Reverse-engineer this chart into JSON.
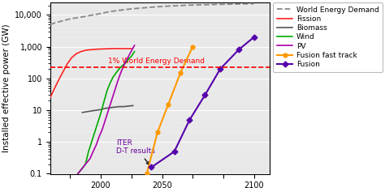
{
  "ylabel": "Installed effective power (GW)",
  "xlim": [
    1967,
    2110
  ],
  "ylim_log": [
    0.1,
    25000
  ],
  "background_color": "#e8e8e8",
  "one_percent_line_y": 220,
  "one_percent_label": "1% World Energy Demand",
  "iter_annotation": "ITER\nD-T results",
  "world_energy_demand": {
    "x": [
      1967,
      1970,
      1975,
      1980,
      1985,
      1990,
      1995,
      2000,
      2005,
      2010,
      2015,
      2020,
      2030,
      2040,
      2050,
      2060,
      2070,
      2080,
      2090,
      2100
    ],
    "y": [
      5000,
      5600,
      6500,
      7500,
      8200,
      9000,
      10000,
      11000,
      12500,
      13500,
      14500,
      15500,
      17000,
      18500,
      19500,
      20500,
      21000,
      21500,
      22000,
      22500
    ],
    "color": "#888888",
    "linestyle": "--",
    "label": "World Energy Demand"
  },
  "pv": {
    "x": [
      1985,
      1988,
      1990,
      1993,
      1995,
      1997,
      1999,
      2001,
      2003,
      2005,
      2007,
      2009,
      2011,
      2013,
      2015,
      2017,
      2019,
      2021,
      2022
    ],
    "y": [
      0.1,
      0.15,
      0.2,
      0.3,
      0.5,
      0.8,
      1.5,
      2.5,
      5.0,
      10.0,
      20.0,
      40.0,
      80.0,
      150.0,
      250.0,
      400.0,
      600.0,
      900.0,
      1100.0
    ],
    "color": "#aa00aa",
    "label": "PV"
  },
  "fission": {
    "x": [
      1960,
      1963,
      1966,
      1969,
      1972,
      1975,
      1978,
      1981,
      1984,
      1987,
      1990,
      1993,
      1996,
      1999,
      2002,
      2005,
      2008,
      2011,
      2015,
      2020
    ],
    "y": [
      8,
      12,
      20,
      40,
      80,
      150,
      280,
      450,
      600,
      700,
      770,
      800,
      820,
      840,
      850,
      860,
      870,
      870,
      870,
      870
    ],
    "color": "#ff2222",
    "label": "Fission"
  },
  "wind": {
    "x": [
      1985,
      1988,
      1990,
      1992,
      1994,
      1996,
      1998,
      2000,
      2002,
      2004,
      2006,
      2008,
      2010,
      2012,
      2014,
      2016,
      2018,
      2020,
      2022
    ],
    "y": [
      0.1,
      0.15,
      0.2,
      0.5,
      1.0,
      2.0,
      4.0,
      8.0,
      18.0,
      40.0,
      70.0,
      110.0,
      150.0,
      200.0,
      250.0,
      300.0,
      400.0,
      500.0,
      700.0
    ],
    "color": "#00aa00",
    "label": "Wind"
  },
  "biomass": {
    "x": [
      1988,
      1991,
      1994,
      1997,
      2000,
      2003,
      2006,
      2009,
      2012,
      2015,
      2018,
      2021
    ],
    "y": [
      8.5,
      9.0,
      9.5,
      10.0,
      10.5,
      11.5,
      12.0,
      12.5,
      13.0,
      13.0,
      13.5,
      14.0
    ],
    "color": "#555555",
    "label": "Biomass"
  },
  "fusion_fast": {
    "x": [
      2030,
      2037,
      2044,
      2052,
      2060
    ],
    "y": [
      0.1,
      2.0,
      15.0,
      150.0,
      1000.0
    ],
    "color": "#ff9900",
    "marker": "o",
    "label": "Fusion fast track"
  },
  "fusion": {
    "x": [
      2033,
      2048,
      2058,
      2068,
      2078,
      2090,
      2100
    ],
    "y": [
      0.16,
      0.5,
      5.0,
      30.0,
      200.0,
      800.0,
      2000.0
    ],
    "color": "#5500aa",
    "marker": "D",
    "label": "Fusion"
  },
  "legend_fontsize": 6.5,
  "axis_fontsize": 7.5,
  "tick_fontsize": 7
}
